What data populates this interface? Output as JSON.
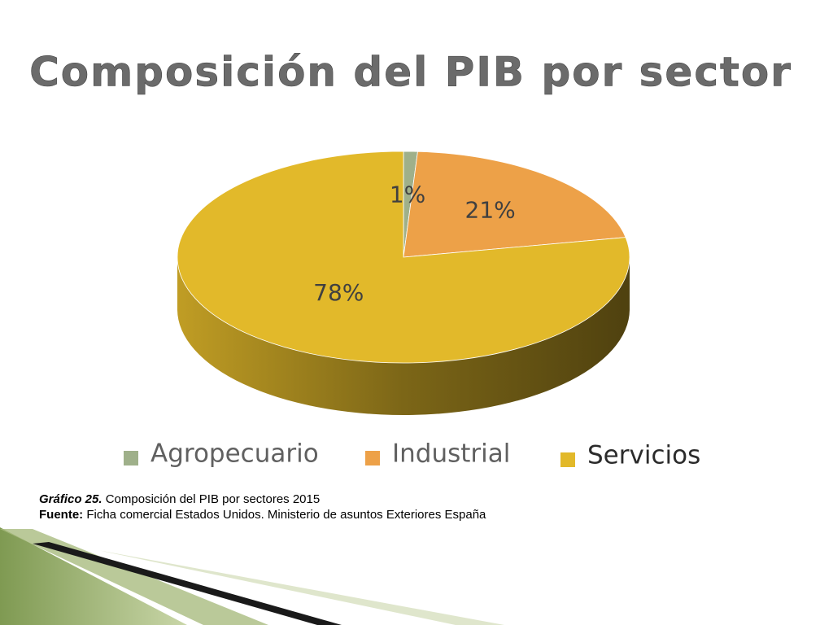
{
  "chart_data": {
    "type": "pie",
    "title": "Composición del PIB por sector",
    "categories": [
      "Agropecuario",
      "Industrial",
      "Servicios"
    ],
    "values": [
      1,
      21,
      78
    ],
    "value_labels": [
      "1%",
      "21%",
      "78%"
    ],
    "colors": [
      "#9fb08a",
      "#eda148",
      "#e2b92a"
    ]
  },
  "caption": {
    "label1": "Gráfico 25.",
    "text1": "Composición del PIB por sectores 2015",
    "label2": "Fuente:",
    "text2": "Ficha comercial Estados Unidos. Ministerio de asuntos Exteriores España"
  }
}
